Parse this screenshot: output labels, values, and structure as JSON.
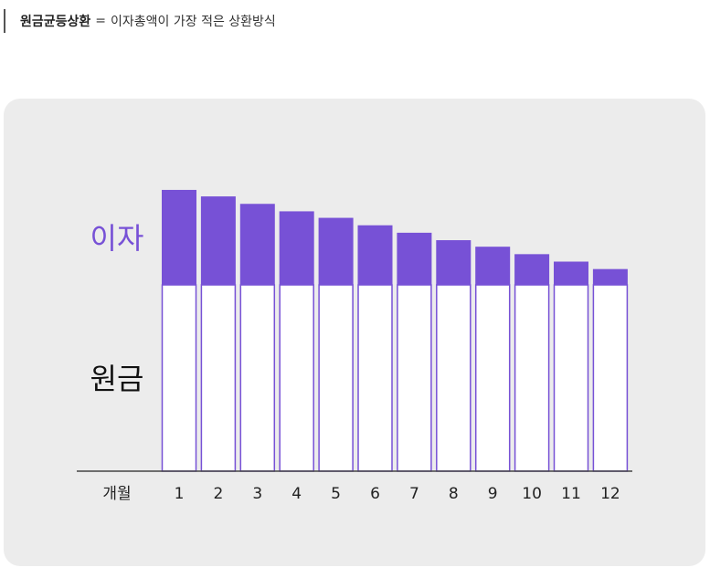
{
  "caption": {
    "term": "원금균등상환",
    "equals": "=",
    "description": "이자총액이 가장 적은 상환방식"
  },
  "colors": {
    "interest": "#7751d6",
    "principal_fill": "#ffffff",
    "principal_stroke": "#7751d6",
    "axis": "#444444",
    "panel": "#ececec"
  },
  "chart_data": {
    "type": "bar",
    "stacked": true,
    "xlabel": "개월",
    "categories": [
      "1",
      "2",
      "3",
      "4",
      "5",
      "6",
      "7",
      "8",
      "9",
      "10",
      "11",
      "12"
    ],
    "series": [
      {
        "name": "원금",
        "values": [
          200,
          200,
          200,
          200,
          200,
          200,
          200,
          200,
          200,
          200,
          200,
          200
        ]
      },
      {
        "name": "이자",
        "values": [
          102,
          95,
          87,
          79,
          72,
          64,
          56,
          48,
          41,
          33,
          25,
          17
        ]
      }
    ],
    "ylim": [
      0,
      300
    ],
    "grid": false
  }
}
